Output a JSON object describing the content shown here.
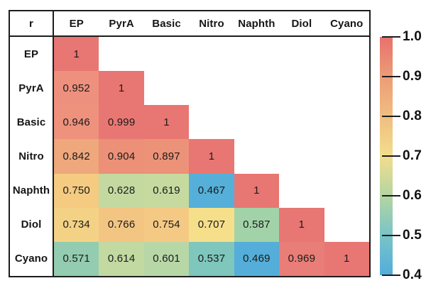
{
  "canvas": {
    "background": "#ffffff",
    "border_color": "#1d1d1d",
    "text_color": "#161616"
  },
  "table": {
    "corner_label": "r",
    "columns": [
      "EP",
      "PyrA",
      "Basic",
      "Nitro",
      "Naphth",
      "Diol",
      "Cyano"
    ],
    "rows": [
      {
        "label": "EP",
        "cells": [
          {
            "value": "1",
            "color": "#E87672"
          }
        ]
      },
      {
        "label": "PyrA",
        "cells": [
          {
            "value": "0.952",
            "color": "#EE907E"
          },
          {
            "value": "1",
            "color": "#E87672"
          }
        ]
      },
      {
        "label": "Basic",
        "cells": [
          {
            "value": "0.946",
            "color": "#EE917D"
          },
          {
            "value": "0.999",
            "color": "#E87773"
          },
          {
            "value": "1",
            "color": "#E87672"
          }
        ]
      },
      {
        "label": "Nitro",
        "cells": [
          {
            "value": "0.842",
            "color": "#EFA77C"
          },
          {
            "value": "0.904",
            "color": "#EC9077"
          },
          {
            "value": "0.897",
            "color": "#EC9278"
          },
          {
            "value": "1",
            "color": "#E87672"
          }
        ]
      },
      {
        "label": "Naphth",
        "cells": [
          {
            "value": "0.750",
            "color": "#F5CB82"
          },
          {
            "value": "0.628",
            "color": "#C3D9A0"
          },
          {
            "value": "0.619",
            "color": "#C6DAA0"
          },
          {
            "value": "0.467",
            "color": "#55AFD9"
          },
          {
            "value": "1",
            "color": "#E87672"
          }
        ]
      },
      {
        "label": "Diol",
        "cells": [
          {
            "value": "0.734",
            "color": "#F4D285"
          },
          {
            "value": "0.766",
            "color": "#F3C583"
          },
          {
            "value": "0.754",
            "color": "#F4C984"
          },
          {
            "value": "0.707",
            "color": "#F5DF8B"
          },
          {
            "value": "0.587",
            "color": "#A2D3A8"
          },
          {
            "value": "1",
            "color": "#E87672"
          }
        ]
      },
      {
        "label": "Cyano",
        "cells": [
          {
            "value": "0.571",
            "color": "#93CCB0"
          },
          {
            "value": "0.614",
            "color": "#C2D9A2"
          },
          {
            "value": "0.601",
            "color": "#B8D7A7"
          },
          {
            "value": "0.537",
            "color": "#7FC6BC"
          },
          {
            "value": "0.469",
            "color": "#54AED9"
          },
          {
            "value": "0.969",
            "color": "#E97D77"
          },
          {
            "value": "1",
            "color": "#E87672"
          }
        ]
      }
    ]
  },
  "colorbar": {
    "tick_labels": [
      "1.0",
      "0.9",
      "0.8",
      "0.7",
      "0.6",
      "0.5",
      "0.4"
    ],
    "gradient_stops_bottom_to_top": [
      "#52ADDB",
      "#79C4C7",
      "#B4D5A2",
      "#F2DE8D",
      "#F0BE80",
      "#EC9C77",
      "#E8716D"
    ]
  },
  "chart_data": {
    "type": "heatmap",
    "title": "",
    "legend_label": "r",
    "categories": [
      "EP",
      "PyrA",
      "Basic",
      "Nitro",
      "Naphth",
      "Diol",
      "Cyano"
    ],
    "matrix_lower_triangle": [
      [
        1
      ],
      [
        0.952,
        1
      ],
      [
        0.946,
        0.999,
        1
      ],
      [
        0.842,
        0.904,
        0.897,
        1
      ],
      [
        0.75,
        0.628,
        0.619,
        0.467,
        1
      ],
      [
        0.734,
        0.766,
        0.754,
        0.707,
        0.587,
        1
      ],
      [
        0.571,
        0.614,
        0.601,
        0.537,
        0.469,
        0.969,
        1
      ]
    ],
    "colorbar_range": [
      0.4,
      1.0
    ],
    "colorbar_ticks": [
      1.0,
      0.9,
      0.8,
      0.7,
      0.6,
      0.5,
      0.4
    ],
    "legend_position": "right",
    "grid": false
  }
}
